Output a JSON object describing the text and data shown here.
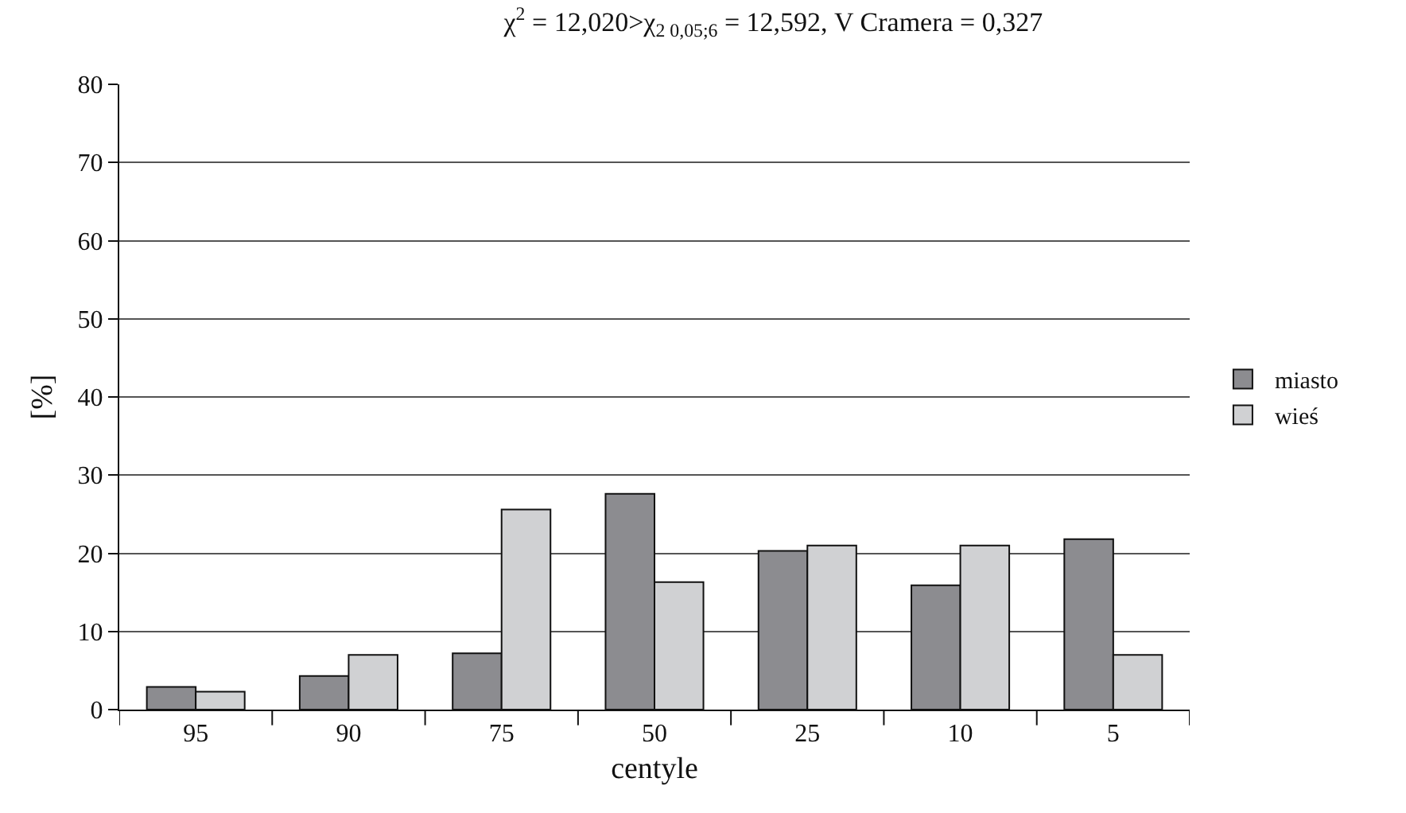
{
  "chart_data": {
    "type": "bar",
    "title": "χ$^{2}$ = 12,020>χ$_{2 0,05;6}$ = 12,592, V Cramera = 0,327",
    "xlabel": "centyle",
    "ylabel": "[%]",
    "categories": [
      "95",
      "90",
      "75",
      "50",
      "25",
      "10",
      "5"
    ],
    "series": [
      {
        "name": "miasto",
        "color": "#8c8c90",
        "values": [
          2.9,
          4.3,
          7.2,
          27.6,
          20.3,
          15.9,
          21.8
        ]
      },
      {
        "name": "wieś",
        "color": "#d0d1d3",
        "values": [
          2.3,
          7.0,
          25.6,
          16.3,
          21.0,
          21.0,
          7.0
        ]
      }
    ],
    "ylim": [
      0,
      80
    ],
    "yticks": [
      0,
      10,
      20,
      30,
      40,
      50,
      60,
      70,
      80
    ],
    "grid": "y",
    "legend": "right"
  }
}
